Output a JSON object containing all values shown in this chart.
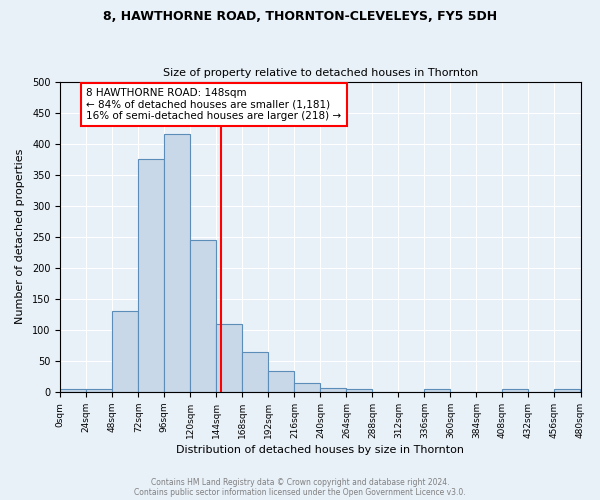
{
  "title": "8, HAWTHORNE ROAD, THORNTON-CLEVELEYS, FY5 5DH",
  "subtitle": "Size of property relative to detached houses in Thornton",
  "xlabel": "Distribution of detached houses by size in Thornton",
  "ylabel": "Number of detached properties",
  "bin_edges": [
    0,
    24,
    48,
    72,
    96,
    120,
    144,
    168,
    192,
    216,
    240,
    264,
    288,
    312,
    336,
    360,
    384,
    408,
    432,
    456,
    480
  ],
  "counts": [
    5,
    5,
    130,
    375,
    415,
    245,
    110,
    65,
    33,
    15,
    7,
    5,
    0,
    0,
    5,
    0,
    0,
    5,
    0,
    5
  ],
  "bar_color": "#c8d8e8",
  "bar_edge_color": "#5b8db8",
  "vline_x": 148,
  "vline_color": "red",
  "ylim": [
    0,
    500
  ],
  "xlim": [
    0,
    480
  ],
  "annotation_text": "8 HAWTHORNE ROAD: 148sqm\n← 84% of detached houses are smaller (1,181)\n16% of semi-detached houses are larger (218) →",
  "annotation_box_color": "white",
  "annotation_box_edge_color": "red",
  "footer_line1": "Contains HM Land Registry data © Crown copyright and database right 2024.",
  "footer_line2": "Contains public sector information licensed under the Open Government Licence v3.0.",
  "background_color": "#e8f0f8",
  "plot_background_color": "#e8f0f8",
  "tick_labels": [
    "0sqm",
    "24sqm",
    "48sqm",
    "72sqm",
    "96sqm",
    "120sqm",
    "144sqm",
    "168sqm",
    "192sqm",
    "216sqm",
    "240sqm",
    "264sqm",
    "288sqm",
    "312sqm",
    "336sqm",
    "360sqm",
    "384sqm",
    "408sqm",
    "432sqm",
    "456sqm",
    "480sqm"
  ]
}
